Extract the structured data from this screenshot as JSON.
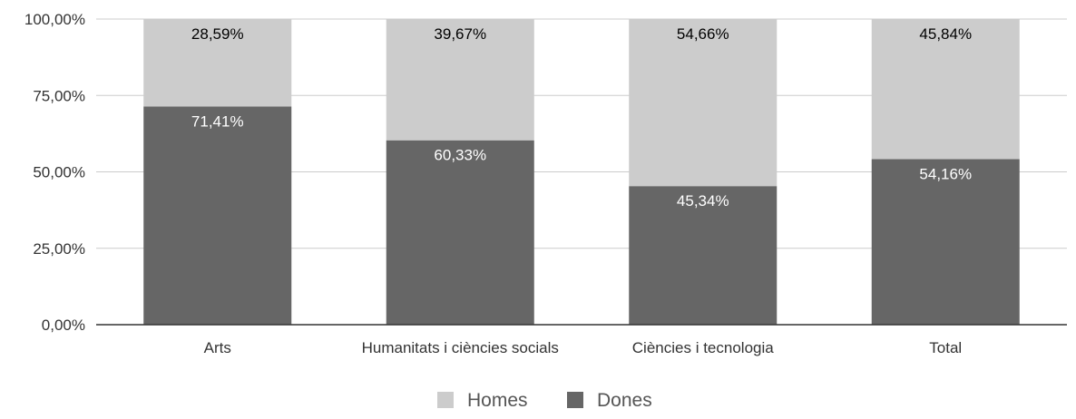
{
  "chart_data": {
    "type": "bar",
    "stacked": true,
    "categories": [
      "Arts",
      "Humanitats i ciències socials",
      "Ciències i tecnologia",
      "Total"
    ],
    "series": [
      {
        "name": "Dones",
        "values": [
          71.41,
          60.33,
          45.34,
          54.16
        ],
        "labels": [
          "71,41%",
          "60,33%",
          "45,34%",
          "54,16%"
        ],
        "color": "#666666",
        "label_color": "#ffffff"
      },
      {
        "name": "Homes",
        "values": [
          28.59,
          39.67,
          54.66,
          45.84
        ],
        "labels": [
          "28,59%",
          "39,67%",
          "54,66%",
          "45,84%"
        ],
        "color": "#cccccc",
        "label_color": "#000000"
      }
    ],
    "legend": {
      "position": "bottom",
      "items": [
        {
          "name": "Homes",
          "color": "#cccccc"
        },
        {
          "name": "Dones",
          "color": "#666666"
        }
      ]
    },
    "y_ticks": [
      {
        "value": 0,
        "label": "0,00%"
      },
      {
        "value": 25,
        "label": "25,00%"
      },
      {
        "value": 50,
        "label": "50,00%"
      },
      {
        "value": 75,
        "label": "75,00%"
      },
      {
        "value": 100,
        "label": "100,00%"
      }
    ],
    "ylim": [
      0,
      100
    ],
    "grid": true,
    "title": "",
    "xlabel": "",
    "ylabel": ""
  }
}
